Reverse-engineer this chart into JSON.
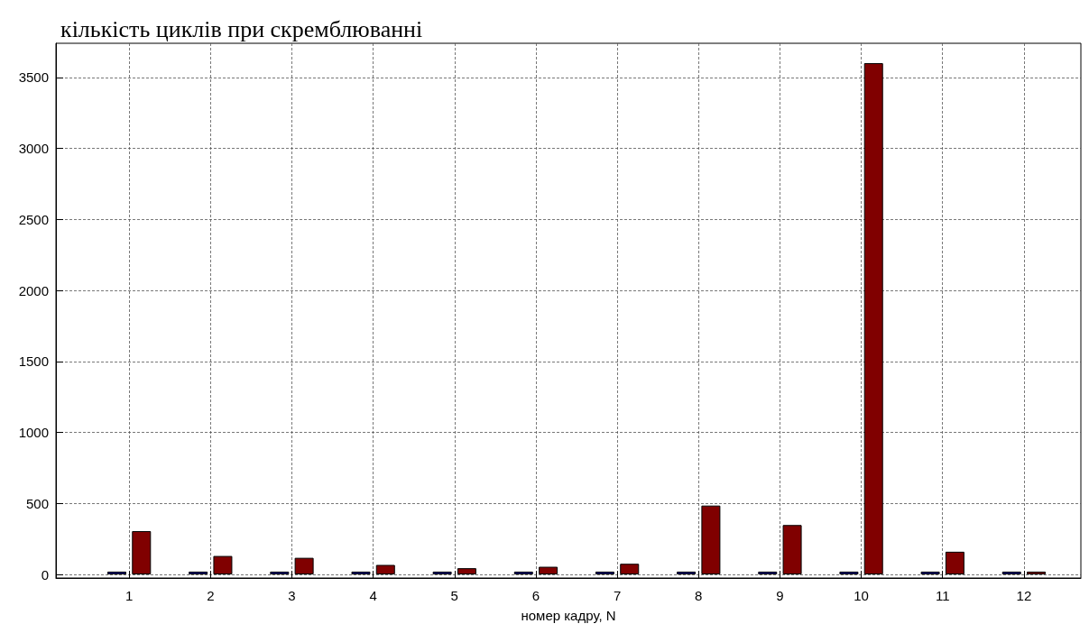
{
  "chart_data": {
    "type": "bar",
    "title": "кількість циклів при скремблюванні",
    "xlabel": "номер кадру, N",
    "x": [
      1,
      2,
      3,
      4,
      5,
      6,
      7,
      8,
      9,
      10,
      11,
      12
    ],
    "xlim": [
      0.1,
      12.7
    ],
    "xticks": [
      1,
      2,
      3,
      4,
      5,
      6,
      7,
      8,
      9,
      10,
      11,
      12
    ],
    "series": [
      {
        "color": "#000080",
        "values": [
          20,
          20,
          20,
          20,
          20,
          20,
          20,
          20,
          20,
          20,
          20,
          20
        ]
      },
      {
        "color": "#800000",
        "values": [
          305,
          130,
          117,
          67,
          44,
          54,
          75,
          485,
          348,
          3600,
          160,
          20
        ]
      }
    ],
    "ylim": [
      -25,
      3740
    ],
    "yticks": [
      0,
      500,
      1000,
      1500,
      2000,
      2500,
      3000,
      3500
    ],
    "grid": true
  }
}
